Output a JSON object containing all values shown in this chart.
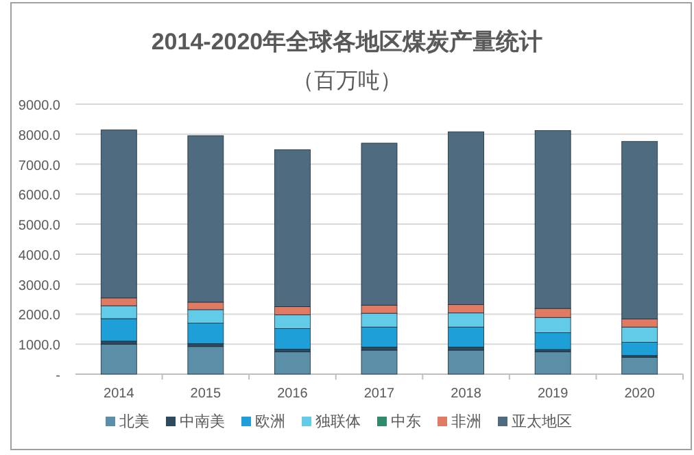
{
  "chart_data": {
    "type": "bar",
    "stacked": true,
    "title": "2014-2020年全球各地区煤炭产量统计",
    "subtitle": "（百万吨）",
    "categories": [
      "2014",
      "2015",
      "2016",
      "2017",
      "2018",
      "2019",
      "2020"
    ],
    "series": [
      {
        "name": "北美",
        "color": "#5b8fa8",
        "values": [
          1000,
          920,
          740,
          800,
          800,
          740,
          560
        ]
      },
      {
        "name": "中南美",
        "color": "#2e4a5e",
        "values": [
          100,
          100,
          90,
          100,
          100,
          80,
          60
        ]
      },
      {
        "name": "欧洲",
        "color": "#1e9fd8",
        "values": [
          750,
          680,
          690,
          670,
          670,
          560,
          440
        ]
      },
      {
        "name": "独联体",
        "color": "#62cbe8",
        "values": [
          430,
          450,
          460,
          460,
          470,
          510,
          510
        ]
      },
      {
        "name": "中东",
        "color": "#2e8b6e",
        "values": [
          null,
          null,
          null,
          null,
          null,
          null,
          null
        ]
      },
      {
        "name": "非洲",
        "color": "#e07a63",
        "values": [
          260,
          250,
          270,
          270,
          280,
          300,
          270
        ]
      },
      {
        "name": "亚太地区",
        "color": "#4f6b80",
        "values": [
          5600,
          5550,
          5230,
          5400,
          5760,
          5930,
          5920
        ]
      }
    ],
    "ylim": [
      0,
      9000
    ],
    "yticks": [
      {
        "value": 0,
        "label": "-"
      },
      {
        "value": 1000,
        "label": "1000.0"
      },
      {
        "value": 2000,
        "label": "2000.0"
      },
      {
        "value": 3000,
        "label": "3000.0"
      },
      {
        "value": 4000,
        "label": "4000.0"
      },
      {
        "value": 5000,
        "label": "5000.0"
      },
      {
        "value": 6000,
        "label": "6000.0"
      },
      {
        "value": 7000,
        "label": "7000.0"
      },
      {
        "value": 8000,
        "label": "8000.0"
      },
      {
        "value": 9000,
        "label": "9000.0"
      }
    ],
    "grid": "y",
    "legend": "bottom"
  }
}
